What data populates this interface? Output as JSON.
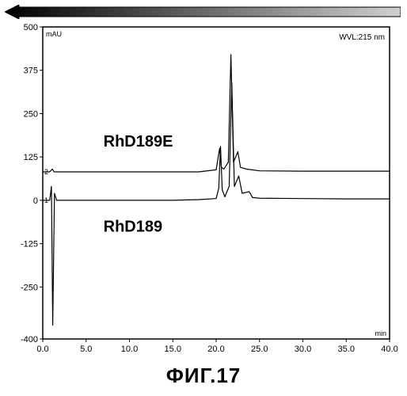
{
  "figure_caption": "ФИГ.17",
  "chart": {
    "type": "line",
    "background_color": "#ffffff",
    "border_color": "#000000",
    "wvl_label": "WVL:215 nm",
    "wvl_fontsize": 10,
    "y_unit": "mAU",
    "x_unit": "min",
    "unit_fontsize": 9,
    "tick_fontsize": 11,
    "label_fontsize": 20,
    "label_fontweight": "bold",
    "y_ticks": [
      -400,
      -250,
      -125,
      0,
      125,
      250,
      375,
      500
    ],
    "x_ticks": [
      0.0,
      5.0,
      10.0,
      15.0,
      20.0,
      25.0,
      30.0,
      35.0,
      40.0
    ],
    "ylim": [
      -400,
      500
    ],
    "xlim": [
      0,
      40
    ],
    "channel_labels": [
      "1",
      "2"
    ],
    "channel_label_fontsize": 9,
    "series": [
      {
        "name": "RhD189E",
        "label_x": 7.0,
        "label_y": 155,
        "color": "#000000",
        "line_width": 1.2,
        "points": [
          [
            0.0,
            82
          ],
          [
            0.8,
            82
          ],
          [
            1.1,
            90
          ],
          [
            1.3,
            82
          ],
          [
            1.6,
            82
          ],
          [
            5.0,
            82
          ],
          [
            10.0,
            82
          ],
          [
            15.0,
            82
          ],
          [
            18.0,
            82
          ],
          [
            20.0,
            88
          ],
          [
            20.4,
            150
          ],
          [
            20.6,
            95
          ],
          [
            20.9,
            90
          ],
          [
            21.4,
            110
          ],
          [
            21.7,
            420
          ],
          [
            22.0,
            110
          ],
          [
            22.5,
            140
          ],
          [
            22.8,
            95
          ],
          [
            23.5,
            90
          ],
          [
            25.0,
            85
          ],
          [
            30.0,
            84
          ],
          [
            35.0,
            84
          ],
          [
            40.0,
            84
          ]
        ]
      },
      {
        "name": "RhD189",
        "label_x": 7.0,
        "label_y": -90,
        "color": "#000000",
        "line_width": 1.2,
        "points": [
          [
            0.0,
            0
          ],
          [
            0.8,
            0
          ],
          [
            1.0,
            40
          ],
          [
            1.15,
            -360
          ],
          [
            1.35,
            20
          ],
          [
            1.6,
            0
          ],
          [
            5.0,
            0
          ],
          [
            10.0,
            0
          ],
          [
            15.0,
            0
          ],
          [
            18.0,
            2
          ],
          [
            20.0,
            5
          ],
          [
            20.3,
            35
          ],
          [
            20.5,
            155
          ],
          [
            20.7,
            30
          ],
          [
            21.0,
            10
          ],
          [
            21.5,
            40
          ],
          [
            21.8,
            340
          ],
          [
            22.1,
            40
          ],
          [
            22.6,
            70
          ],
          [
            23.0,
            20
          ],
          [
            23.8,
            25
          ],
          [
            24.2,
            8
          ],
          [
            25.0,
            6
          ],
          [
            30.0,
            5
          ],
          [
            35.0,
            4
          ],
          [
            40.0,
            4
          ]
        ]
      }
    ]
  },
  "top_arrow": {
    "fill_start": "#e8e8e8",
    "fill_end": "#000000",
    "stroke": "#000000"
  }
}
